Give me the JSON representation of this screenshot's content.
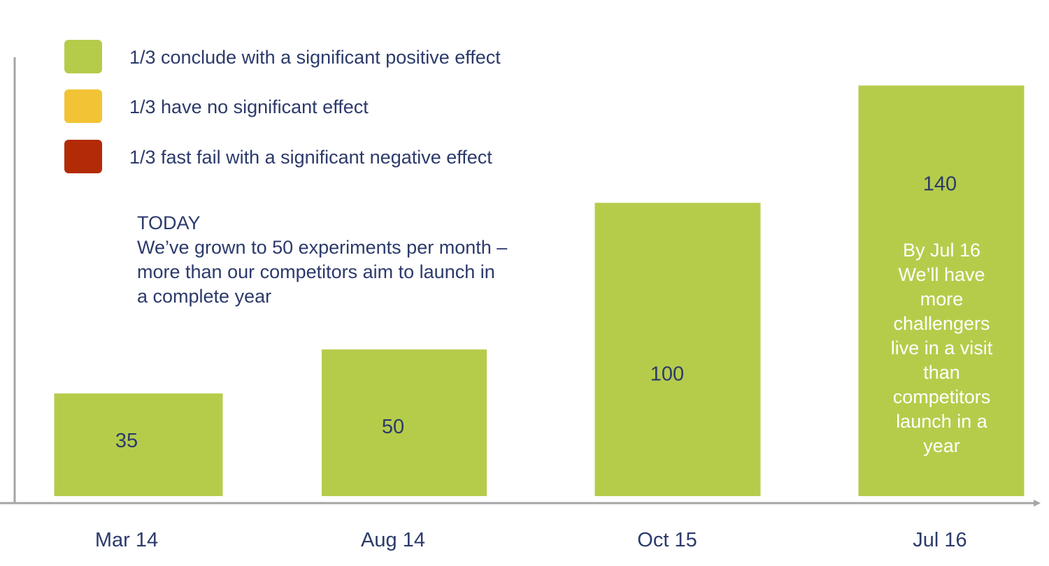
{
  "chart_data": {
    "type": "bar",
    "title": "",
    "xlabel": "",
    "ylabel": "",
    "categories": [
      "Mar 14",
      "Aug 14",
      "Oct 15",
      "Jul 16"
    ],
    "values": [
      35,
      50,
      100,
      140
    ],
    "data_labels": [
      "35",
      "50",
      "100",
      "140"
    ],
    "ylim": [
      0,
      152
    ],
    "grid": false,
    "bar_color": "#b5cc4b",
    "axis_color": "#a6a6a6",
    "label_color": "#2c3a6b"
  },
  "legend": [
    {
      "color": "#b5cc4b",
      "label": "1/3 conclude with a significant positive effect"
    },
    {
      "color": "#f2c435",
      "label": "1/3 have no significant effect"
    },
    {
      "color": "#b22b06",
      "label": "1/3 fast fail with a significant negative effect"
    }
  ],
  "annotation": {
    "lines": [
      "TODAY",
      "We’ve grown to 50 experiments per month –",
      "more than our competitors aim to launch in",
      "a complete year"
    ]
  },
  "inbar_note": {
    "lines": [
      "By Jul 16",
      "We’ll have",
      "more",
      "challengers",
      "live in a visit",
      "than",
      "competitors",
      "launch in a",
      "year"
    ]
  }
}
